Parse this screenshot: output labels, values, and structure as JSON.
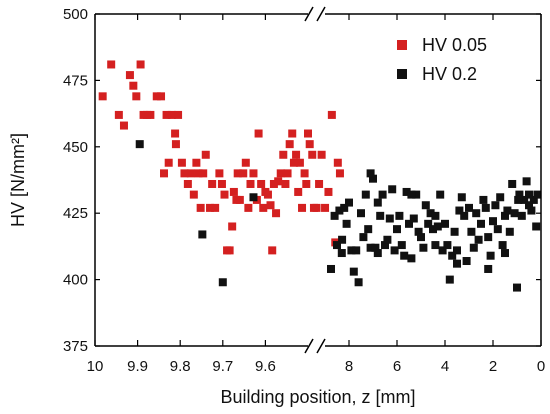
{
  "chart_data": {
    "type": "scatter",
    "title": "",
    "xlabel": "Building position, z [mm]",
    "ylabel": "HV [N/mm²]",
    "ylim": [
      375,
      500
    ],
    "y_ticks": [
      "375",
      "400",
      "425",
      "450",
      "475",
      "500"
    ],
    "grid": false,
    "axis_break": true,
    "legend_position": "top-right",
    "segments": [
      {
        "name": "left",
        "xlim": [
          10.0,
          9.5
        ],
        "x_reversed": true,
        "tick_values": [
          10,
          9.9,
          9.8,
          9.7,
          9.6
        ],
        "tick_labels": [
          "10",
          "9.9",
          "9.8",
          "9.7",
          "9.6"
        ]
      },
      {
        "name": "right",
        "xlim": [
          9.0,
          0.0
        ],
        "x_reversed": true,
        "tick_values": [
          8,
          6,
          4,
          2,
          0
        ],
        "tick_labels": [
          "8",
          "6",
          "4",
          "2",
          "0"
        ]
      }
    ],
    "series": [
      {
        "name": "HV 0.05",
        "color": "#d42020",
        "marker": "square",
        "segment": "left",
        "points": [
          [
            9.982,
            469
          ],
          [
            9.962,
            481
          ],
          [
            9.944,
            462
          ],
          [
            9.932,
            458
          ],
          [
            9.918,
            477
          ],
          [
            9.91,
            473
          ],
          [
            9.903,
            469
          ],
          [
            9.893,
            481
          ],
          [
            9.886,
            462
          ],
          [
            9.878,
            462
          ],
          [
            9.87,
            462
          ],
          [
            9.855,
            469
          ],
          [
            9.845,
            469
          ],
          [
            9.838,
            440
          ],
          [
            9.832,
            462
          ],
          [
            9.827,
            444
          ],
          [
            9.82,
            462
          ],
          [
            9.812,
            455
          ],
          [
            9.81,
            451
          ],
          [
            9.805,
            462
          ],
          [
            9.796,
            444
          ],
          [
            9.79,
            440
          ],
          [
            9.782,
            436
          ],
          [
            9.775,
            440
          ],
          [
            9.768,
            432
          ],
          [
            9.762,
            444
          ],
          [
            9.757,
            440
          ],
          [
            9.752,
            427
          ],
          [
            9.746,
            440
          ],
          [
            9.74,
            447
          ],
          [
            9.73,
            427
          ],
          [
            9.725,
            436
          ],
          [
            9.718,
            427
          ],
          [
            9.708,
            440
          ],
          [
            9.702,
            436
          ],
          [
            9.696,
            432
          ],
          [
            9.69,
            411
          ],
          [
            9.684,
            411
          ],
          [
            9.678,
            420
          ],
          [
            9.674,
            433
          ],
          [
            9.668,
            430
          ],
          [
            9.665,
            440
          ],
          [
            9.66,
            430
          ],
          [
            9.652,
            440
          ],
          [
            9.646,
            444
          ],
          [
            9.64,
            427
          ],
          [
            9.635,
            436
          ],
          [
            9.628,
            440
          ],
          [
            9.62,
            430
          ],
          [
            9.616,
            455
          ],
          [
            9.61,
            436
          ],
          [
            9.605,
            427
          ],
          [
            9.6,
            433
          ],
          [
            9.594,
            432
          ],
          [
            9.588,
            428
          ],
          [
            9.584,
            411
          ],
          [
            9.58,
            436
          ],
          [
            9.575,
            425
          ],
          [
            9.57,
            437
          ],
          [
            9.564,
            440
          ],
          [
            9.558,
            447
          ],
          [
            9.553,
            436
          ],
          [
            9.548,
            440
          ],
          [
            9.543,
            451
          ],
          [
            9.537,
            455
          ],
          [
            9.533,
            444
          ],
          [
            9.528,
            447
          ],
          [
            9.523,
            433
          ],
          [
            9.519,
            444
          ],
          [
            9.514,
            427
          ],
          [
            9.508,
            440
          ],
          [
            9.504,
            436
          ],
          [
            9.5,
            455
          ],
          [
            9.496,
            451
          ],
          [
            9.49,
            447
          ],
          [
            9.486,
            427
          ],
          [
            9.48,
            427
          ],
          [
            9.474,
            436
          ],
          [
            9.468,
            447
          ],
          [
            9.46,
            427
          ],
          [
            9.452,
            433
          ],
          [
            9.444,
            462
          ],
          [
            9.436,
            414
          ],
          [
            9.43,
            444
          ],
          [
            9.425,
            440
          ]
        ]
      },
      {
        "name": "HV 0.2",
        "color": "#111111",
        "marker": "square",
        "segments": [
          "left",
          "right"
        ],
        "points_left": [
          [
            9.895,
            451
          ],
          [
            9.748,
            417
          ],
          [
            9.7,
            399
          ],
          [
            9.628,
            431
          ],
          [
            9.42,
            415
          ]
        ],
        "points_right": [
          [
            8.75,
            404
          ],
          [
            8.6,
            424
          ],
          [
            8.5,
            413
          ],
          [
            8.4,
            426
          ],
          [
            8.3,
            410
          ],
          [
            8.2,
            427
          ],
          [
            8.1,
            421
          ],
          [
            8.0,
            429
          ],
          [
            7.9,
            411
          ],
          [
            7.8,
            403
          ],
          [
            7.7,
            411
          ],
          [
            7.6,
            399
          ],
          [
            7.5,
            425
          ],
          [
            7.4,
            416
          ],
          [
            7.3,
            432
          ],
          [
            7.2,
            419
          ],
          [
            7.1,
            412
          ],
          [
            7.0,
            438
          ],
          [
            6.9,
            412
          ],
          [
            6.8,
            429
          ],
          [
            6.7,
            424
          ],
          [
            6.6,
            432
          ],
          [
            6.5,
            413
          ],
          [
            6.4,
            415
          ],
          [
            6.3,
            423
          ],
          [
            6.2,
            434
          ],
          [
            6.1,
            411
          ],
          [
            6.0,
            419
          ],
          [
            5.9,
            424
          ],
          [
            5.8,
            413
          ],
          [
            5.7,
            409
          ],
          [
            5.6,
            433
          ],
          [
            5.5,
            421
          ],
          [
            5.4,
            408
          ],
          [
            5.3,
            423
          ],
          [
            5.2,
            432
          ],
          [
            5.1,
            418
          ],
          [
            5.0,
            416
          ],
          [
            4.9,
            412
          ],
          [
            4.8,
            428
          ],
          [
            4.7,
            421
          ],
          [
            4.6,
            425
          ],
          [
            4.5,
            419
          ],
          [
            4.4,
            413
          ],
          [
            4.3,
            420
          ],
          [
            4.2,
            432
          ],
          [
            4.1,
            411
          ],
          [
            4.0,
            421
          ],
          [
            3.9,
            413
          ],
          [
            3.8,
            400
          ],
          [
            3.7,
            409
          ],
          [
            3.6,
            418
          ],
          [
            3.5,
            411
          ],
          [
            3.4,
            426
          ],
          [
            3.3,
            431
          ],
          [
            3.2,
            424
          ],
          [
            3.1,
            407
          ],
          [
            3.0,
            427
          ],
          [
            2.9,
            418
          ],
          [
            2.8,
            412
          ],
          [
            2.7,
            425
          ],
          [
            2.6,
            415
          ],
          [
            2.5,
            421
          ],
          [
            2.4,
            430
          ],
          [
            2.3,
            427
          ],
          [
            2.2,
            416
          ],
          [
            2.1,
            409
          ],
          [
            2.0,
            422
          ],
          [
            1.9,
            428
          ],
          [
            1.8,
            419
          ],
          [
            1.7,
            431
          ],
          [
            1.6,
            413
          ],
          [
            1.5,
            424
          ],
          [
            1.4,
            426
          ],
          [
            1.3,
            418
          ],
          [
            1.2,
            436
          ],
          [
            1.1,
            425
          ],
          [
            1.0,
            397
          ],
          [
            0.9,
            432
          ],
          [
            0.8,
            424
          ],
          [
            0.7,
            430
          ],
          [
            0.6,
            437
          ],
          [
            0.5,
            432
          ],
          [
            0.4,
            426
          ],
          [
            0.3,
            430
          ],
          [
            0.2,
            420
          ],
          [
            0.15,
            432
          ],
          [
            0.5,
            428
          ],
          [
            1.5,
            410
          ],
          [
            2.2,
            404
          ],
          [
            6.8,
            410
          ],
          [
            7.1,
            440
          ],
          [
            5.4,
            432
          ],
          [
            4.4,
            424
          ],
          [
            3.5,
            406
          ],
          [
            0.95,
            430
          ]
        ]
      }
    ]
  }
}
